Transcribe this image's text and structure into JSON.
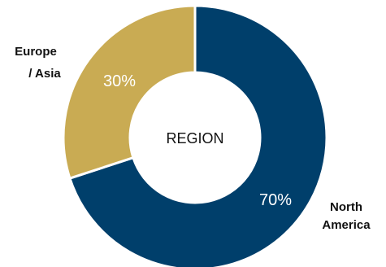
{
  "chart_data": {
    "type": "pie",
    "center_text": "REGION",
    "slices": [
      {
        "label_lines": [
          "North",
          "America"
        ],
        "value": 70,
        "value_text": "70%",
        "color": "#003f6b"
      },
      {
        "label_lines": [
          "Europe",
          "/ Asia"
        ],
        "value": 30,
        "value_text": "30%",
        "color": "#c9ab53"
      }
    ]
  }
}
